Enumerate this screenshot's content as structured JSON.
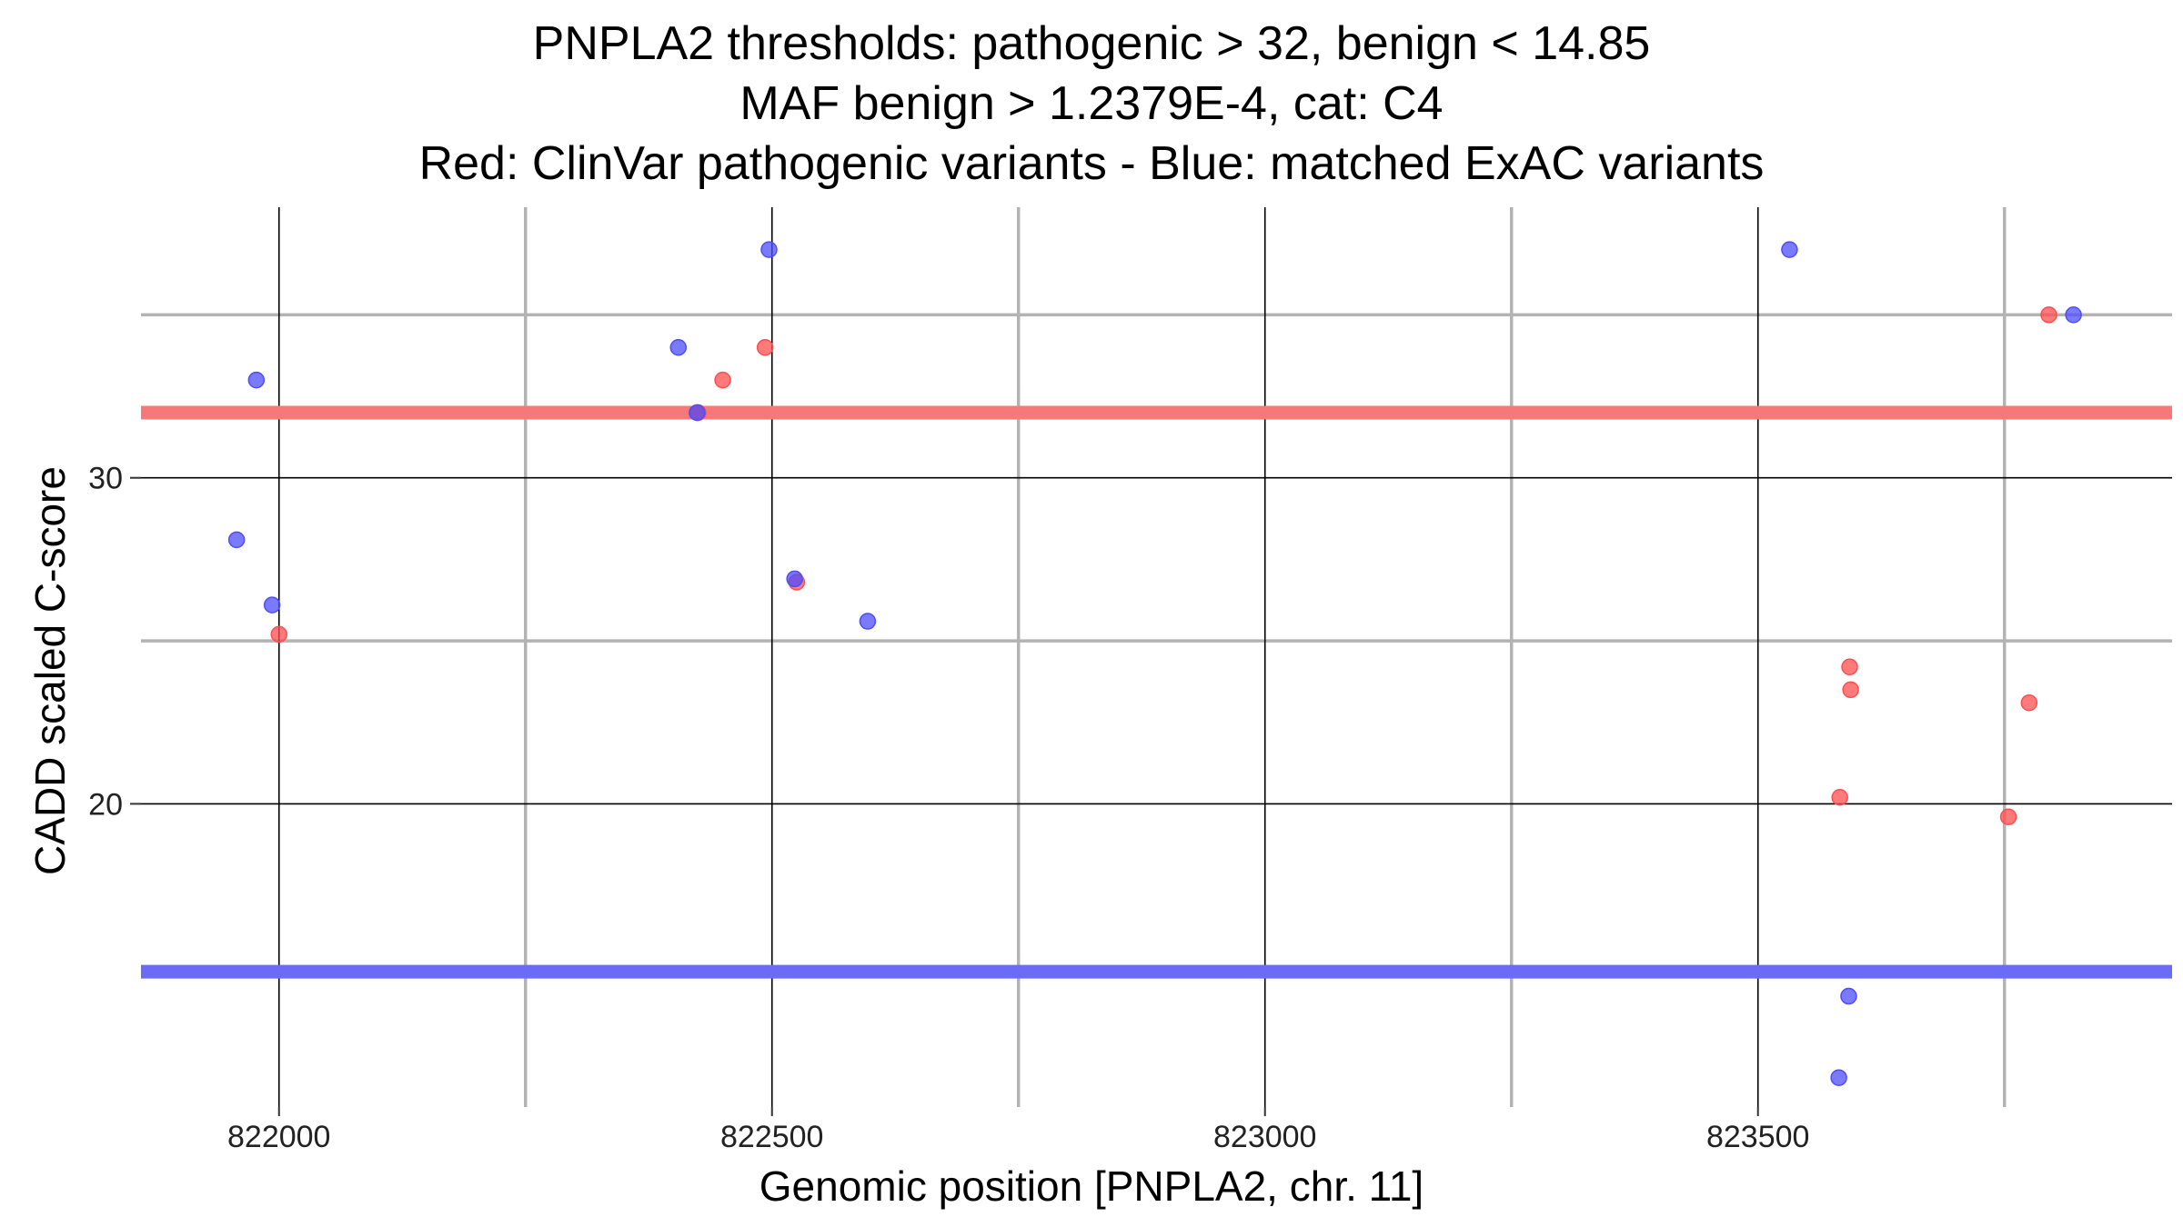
{
  "chart_data": {
    "type": "scatter",
    "title": [
      "PNPLA2 thresholds: pathogenic > 32, benign < 14.85",
      "MAF benign > 1.2379E-4, cat: C4",
      "Red: ClinVar pathogenic variants - Blue: matched ExAC variants"
    ],
    "xlabel": "Genomic position [PNPLA2, chr. 11]",
    "ylabel": "CADD scaled C-score",
    "xlim": [
      821860,
      823920
    ],
    "ylim": [
      10.7,
      38.3
    ],
    "x_ticks": [
      822000,
      822500,
      823000,
      823500
    ],
    "x_tick_labels": [
      "822000",
      "822500",
      "823000",
      "823500"
    ],
    "x_minor_grid": [
      822250,
      822750,
      823250,
      823750
    ],
    "y_ticks": [
      20,
      30
    ],
    "y_tick_labels": [
      "20",
      "30"
    ],
    "y_minor_grid": [
      25,
      35
    ],
    "grid": true,
    "thresholds": [
      {
        "name": "pathogenic",
        "value": 32,
        "color": "#f77878"
      },
      {
        "name": "benign",
        "value": 14.85,
        "color": "#6b6bf5"
      }
    ],
    "series": [
      {
        "color": "#ff4d4d",
        "points": [
          {
            "x": 822000,
            "y": 25.2
          },
          {
            "x": 822425,
            "y": 32
          },
          {
            "x": 822450,
            "y": 33
          },
          {
            "x": 822493,
            "y": 34
          },
          {
            "x": 822525,
            "y": 26.8
          },
          {
            "x": 823583,
            "y": 20.2
          },
          {
            "x": 823593,
            "y": 24.2
          },
          {
            "x": 823594,
            "y": 23.5
          },
          {
            "x": 823754,
            "y": 19.6
          },
          {
            "x": 823775,
            "y": 23.1
          },
          {
            "x": 823795,
            "y": 35
          }
        ]
      },
      {
        "color": "#4d4dff",
        "points": [
          {
            "x": 821957,
            "y": 28.1
          },
          {
            "x": 821977,
            "y": 33
          },
          {
            "x": 821993,
            "y": 26.1
          },
          {
            "x": 822405,
            "y": 34
          },
          {
            "x": 822424,
            "y": 32
          },
          {
            "x": 822497,
            "y": 37
          },
          {
            "x": 822523,
            "y": 26.9
          },
          {
            "x": 822597,
            "y": 25.6
          },
          {
            "x": 823532,
            "y": 37
          },
          {
            "x": 823582,
            "y": 11.6
          },
          {
            "x": 823592,
            "y": 14.1
          },
          {
            "x": 823820,
            "y": 35
          }
        ]
      }
    ]
  }
}
